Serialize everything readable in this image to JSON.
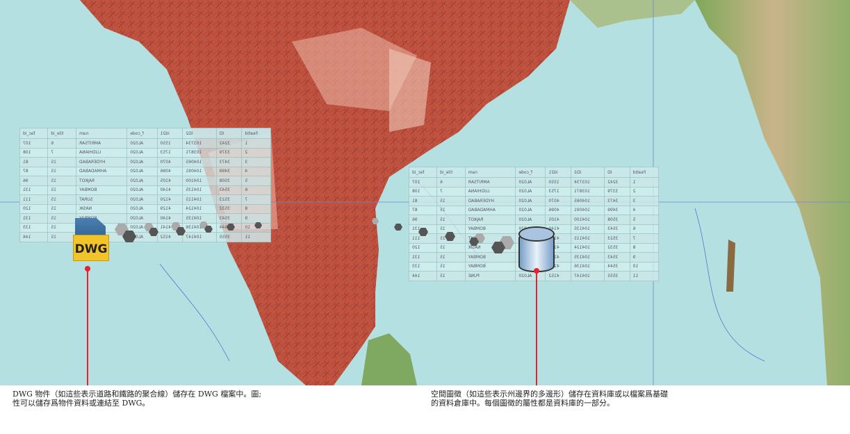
{
  "table": {
    "headers": [
      "FeatId",
      "ID",
      "ID2",
      "id21",
      "f_code",
      "nam",
      "tile_id",
      "fac_id"
    ],
    "rows": [
      [
        "1",
        "3242",
        "103734",
        "1550",
        "AL020",
        "AMRITSAR",
        "6",
        "107"
      ],
      [
        "2",
        "3379",
        "103871",
        "1753",
        "AL020",
        "LUDHIANA",
        "7",
        "108"
      ],
      [
        "3",
        "3473",
        "104065",
        "4070",
        "AL020",
        "HYDERABAD",
        "15",
        "81"
      ],
      [
        "4",
        "3499",
        "104091",
        "4096",
        "AL020",
        "AHMADABAD",
        "15",
        "87"
      ],
      [
        "5",
        "3508",
        "104100",
        "4105",
        "AL020",
        "RAJKOT",
        "15",
        "96"
      ],
      [
        "6",
        "3543",
        "104135",
        "4140",
        "AL020",
        "BOMBAY",
        "15",
        "131"
      ],
      [
        "7",
        "3523",
        "104115",
        "4120",
        "AL020",
        "SURAT",
        "15",
        "111"
      ],
      [
        "8",
        "3532",
        "104124",
        "4129",
        "AL020",
        "NASIK",
        "15",
        "120"
      ],
      [
        "9",
        "3543",
        "104135",
        "4140",
        "AL020",
        "BOMBAY",
        "15",
        "131"
      ],
      [
        "10",
        "3544",
        "104136",
        "4141",
        "AL020",
        "BOMBAY",
        "15",
        "133"
      ],
      [
        "11",
        "3555",
        "104147",
        "4152",
        "AL020",
        "PUNE",
        "15",
        "144"
      ]
    ]
  },
  "dwg_icon_label": "DWG",
  "captions": {
    "left": "DWG 物件（如這些表示道路和鐵路的聚合線）儲存在 DWG 檔案中。圖;\n性可以儲存爲物件資料或連結至 DWG。",
    "right": "空間圖徵（如這些表示州邊界的多邊形）儲存在資料庫或以檔案爲基礎\n的資料倉庫中。每個圖徵的屬性都是資料庫的一部分。"
  },
  "colors": {
    "sea": "#b4e0e1",
    "land": "#c0533f",
    "pointer": "#e8212c"
  }
}
